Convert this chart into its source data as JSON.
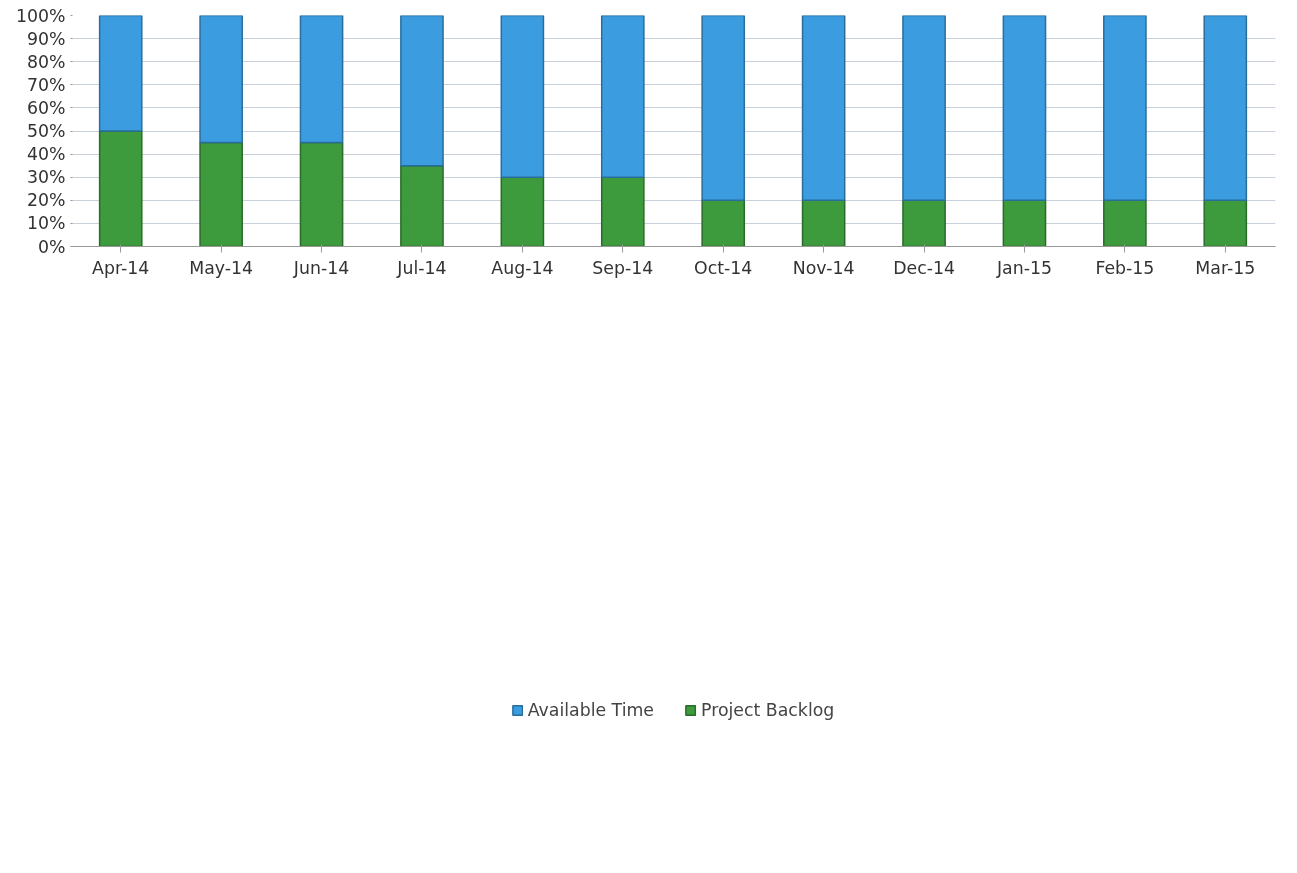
{
  "chart_data": {
    "type": "bar",
    "stacked": true,
    "categories": [
      "Apr-14",
      "May-14",
      "Jun-14",
      "Jul-14",
      "Aug-14",
      "Sep-14",
      "Oct-14",
      "Nov-14",
      "Dec-14",
      "Jan-15",
      "Feb-15",
      "Mar-15"
    ],
    "series": [
      {
        "name": "Project Backlog",
        "color": "#3d9a3d",
        "values": [
          50,
          45,
          45,
          35,
          30,
          30,
          20,
          20,
          20,
          20,
          20,
          20
        ]
      },
      {
        "name": "Available Time",
        "color": "#3b9de0",
        "values": [
          50,
          55,
          55,
          65,
          70,
          70,
          80,
          80,
          80,
          80,
          80,
          80
        ]
      }
    ],
    "ylim": [
      0,
      100
    ],
    "yticks": [
      {
        "value": 0,
        "label": "0%"
      },
      {
        "value": 10,
        "label": "10%"
      },
      {
        "value": 20,
        "label": "20%"
      },
      {
        "value": 30,
        "label": "30%"
      },
      {
        "value": 40,
        "label": "40%"
      },
      {
        "value": 50,
        "label": "50%"
      },
      {
        "value": 60,
        "label": "60%"
      },
      {
        "value": 70,
        "label": "70%"
      },
      {
        "value": 80,
        "label": "80%"
      },
      {
        "value": 90,
        "label": "90%"
      },
      {
        "value": 100,
        "label": "100%"
      }
    ],
    "grid": "y",
    "legend": "bottom"
  }
}
